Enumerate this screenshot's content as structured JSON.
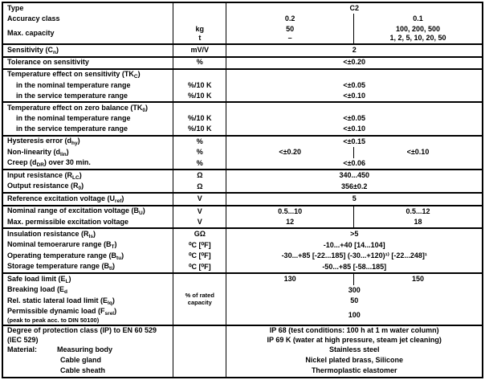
{
  "table": {
    "sections": [
      {
        "rows": [
          {
            "label": [
              [
                "Type"
              ]
            ],
            "unit": "",
            "values": [
              {
                "t": "C2",
                "span": 2
              }
            ]
          },
          {
            "label": [
              [
                "Accuracy class"
              ]
            ],
            "unit": "",
            "values": [
              {
                "t": "0.2"
              },
              {
                "t": "0.1"
              }
            ]
          },
          {
            "label": [
              [
                "Max. capacity"
              ]
            ],
            "unit": "kg\nt",
            "values": [
              {
                "t": "50\n–"
              },
              {
                "t": "100, 200, 500\n1, 2, 5, 10, 20, 50"
              }
            ]
          }
        ]
      },
      {
        "rows": [
          {
            "label": [
              [
                "Sensitivity (C"
              ],
              [
                "n",
                "s"
              ],
              [
                ")"
              ]
            ],
            "unit": "mV/V",
            "values": [
              {
                "t": "2",
                "span": 2
              }
            ]
          }
        ]
      },
      {
        "rows": [
          {
            "label": [
              [
                "Tolerance on sensitivity"
              ]
            ],
            "unit": "%",
            "values": [
              {
                "t": "<±0.20",
                "span": 2
              }
            ]
          }
        ]
      },
      {
        "rows": [
          {
            "label": [
              [
                "Temperature effect on sensitivity (TK"
              ],
              [
                "C",
                "s"
              ],
              [
                ")"
              ]
            ],
            "unit": "",
            "values": [
              {
                "t": "",
                "span": 2
              }
            ]
          },
          {
            "ind": true,
            "label": [
              [
                "in the nominal temperature range"
              ]
            ],
            "unit": "%/10 K",
            "values": [
              {
                "t": "<±0.05",
                "span": 2
              }
            ]
          },
          {
            "ind": true,
            "label": [
              [
                "in the service temperature range"
              ]
            ],
            "unit": "%/10 K",
            "values": [
              {
                "t": "<±0.10",
                "span": 2
              }
            ]
          }
        ]
      },
      {
        "rows": [
          {
            "label": [
              [
                "Temperature effect on zero balance (TK"
              ],
              [
                "0",
                "s"
              ],
              [
                ")"
              ]
            ],
            "unit": "",
            "values": [
              {
                "t": "",
                "span": 2
              }
            ]
          },
          {
            "ind": true,
            "label": [
              [
                "in the nominal temperature range"
              ]
            ],
            "unit": "%/10 K",
            "values": [
              {
                "t": "<±0.05",
                "span": 2
              }
            ]
          },
          {
            "ind": true,
            "label": [
              [
                "in the service temperature range"
              ]
            ],
            "unit": "%/10 K",
            "values": [
              {
                "t": "<±0.10",
                "span": 2
              }
            ]
          }
        ]
      },
      {
        "rows": [
          {
            "label": [
              [
                "Hysteresis error (d"
              ],
              [
                "hy",
                "s"
              ],
              [
                ")"
              ]
            ],
            "unit": "%",
            "values": [
              {
                "t": "<±0.15",
                "span": 2
              }
            ]
          },
          {
            "label": [
              [
                "Non-linearity (d"
              ],
              [
                "lin",
                "s"
              ],
              [
                ")"
              ]
            ],
            "unit": "%",
            "values": [
              {
                "t": "<±0.20"
              },
              {
                "t": "<±0.10"
              }
            ]
          },
          {
            "label": [
              [
                "Creep (d"
              ],
              [
                "DR",
                "s"
              ],
              [
                ") over 30 min."
              ]
            ],
            "unit": "%",
            "values": [
              {
                "t": "<±0.06",
                "span": 2
              }
            ]
          }
        ]
      },
      {
        "rows": [
          {
            "label": [
              [
                "Input resistance (R"
              ],
              [
                "LC",
                "s"
              ],
              [
                ")"
              ]
            ],
            "unit": "Ω",
            "values": [
              {
                "t": "340...450",
                "span": 2
              }
            ]
          },
          {
            "label": [
              [
                "Output resistance (R"
              ],
              [
                "0",
                "s"
              ],
              [
                ")"
              ]
            ],
            "unit": "Ω",
            "values": [
              {
                "t": "356±0.2",
                "span": 2
              }
            ]
          }
        ]
      },
      {
        "rows": [
          {
            "label": [
              [
                "Reference excitation voltage (U"
              ],
              [
                "ref",
                "s"
              ],
              [
                ")"
              ]
            ],
            "unit": "V",
            "values": [
              {
                "t": "5",
                "span": 2
              }
            ]
          }
        ]
      },
      {
        "rows": [
          {
            "label": [
              [
                "Nominal range of excitation voltage (B"
              ],
              [
                "U",
                "s"
              ],
              [
                ")"
              ]
            ],
            "unit": "V",
            "values": [
              {
                "t": "0.5...10"
              },
              {
                "t": "0.5...12"
              }
            ]
          },
          {
            "label": [
              [
                "Max. permissible excitation voltage"
              ]
            ],
            "unit": "V",
            "values": [
              {
                "t": "12"
              },
              {
                "t": "18"
              }
            ]
          }
        ]
      },
      {
        "rows": [
          {
            "label": [
              [
                "Insulation resistance (R"
              ],
              [
                "Is",
                "s"
              ],
              [
                ")"
              ]
            ],
            "unit": "GΩ",
            "values": [
              {
                "t": ">5",
                "span": 2
              }
            ]
          },
          {
            "label": [
              [
                "Nominal temoerarure range (B"
              ],
              [
                "T",
                "s"
              ],
              [
                ")"
              ]
            ],
            "unit": "⁰C [⁰F]",
            "values": [
              {
                "t": "-10...+40 [14...104]",
                "span": 2
              }
            ]
          },
          {
            "label": [
              [
                "Operating temperature range (B"
              ],
              [
                "tu",
                "s"
              ],
              [
                ")"
              ]
            ],
            "unit": "⁰C [⁰F]",
            "values": [
              {
                "t": "-30...+85  [-22...185] (-30...+120)¹⁾ [-22...248]¹",
                "span": 2
              }
            ]
          },
          {
            "label": [
              [
                "Storage temperature range (B"
              ],
              [
                "tl",
                "s"
              ],
              [
                ")"
              ]
            ],
            "unit": "⁰C [⁰F]",
            "values": [
              {
                "t": "-50...+85 [-58...185]",
                "span": 2
              }
            ]
          }
        ]
      },
      {
        "rows": [
          {
            "label": [
              [
                "Safe load limit (E"
              ],
              [
                "L",
                "s"
              ],
              [
                ")"
              ]
            ],
            "unit": {
              "t": "% of rated\ncapacity",
              "rowspan": 4,
              "small": true
            },
            "values": [
              {
                "t": "130"
              },
              {
                "t": "150"
              }
            ]
          },
          {
            "label": [
              [
                "Breaking load (E"
              ],
              [
                "d",
                "s"
              ]
            ],
            "unit": null,
            "values": [
              {
                "t": "300",
                "span": 2
              }
            ]
          },
          {
            "label": [
              [
                "Rel. static lateral load limit (E"
              ],
              [
                "lq",
                "s"
              ],
              [
                ")"
              ]
            ],
            "unit": null,
            "values": [
              {
                "t": "50",
                "span": 2
              }
            ]
          },
          {
            "label": [
              [
                "Permissible dynamic load (F"
              ],
              [
                "srel",
                "s"
              ],
              [
                ")"
              ]
            ],
            "note": "(peak to peak acc. to DIN 50100)",
            "unit": null,
            "values": [
              {
                "t": "100",
                "span": 2
              }
            ]
          }
        ]
      },
      {
        "rows": [
          {
            "label": [
              [
                "Degree of protection class (IP) to EN 60 529\n(IEC 529)"
              ]
            ],
            "unit": "",
            "values": [
              {
                "t": "IP 68 (test conditions: 100 h at 1 m water column)\nIP 69 K (water at high pressure, steam jet cleaning)",
                "span": 2
              }
            ]
          },
          {
            "prefix": "Material:",
            "label": [
              [
                "Measuring body"
              ]
            ],
            "unit": "",
            "values": [
              {
                "t": "Stainless steel",
                "span": 2
              }
            ]
          },
          {
            "ind2": true,
            "label": [
              [
                "Cable gland"
              ]
            ],
            "unit": "",
            "values": [
              {
                "t": "Nickel plated brass, Silicone",
                "span": 2
              }
            ]
          },
          {
            "ind2": true,
            "label": [
              [
                "Cable sheath"
              ]
            ],
            "unit": "",
            "values": [
              {
                "t": "Thermoplastic elastomer",
                "span": 2
              }
            ]
          }
        ]
      }
    ]
  }
}
